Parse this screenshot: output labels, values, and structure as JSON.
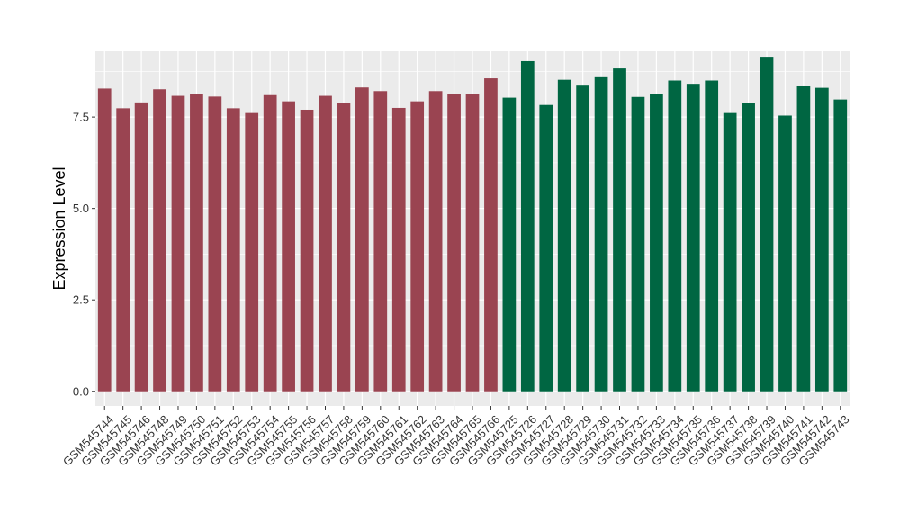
{
  "chart_data": {
    "type": "bar",
    "title": "",
    "xlabel": "",
    "ylabel": "Expression Level",
    "ylim": [
      -0.4,
      9.3
    ],
    "yticks": [
      0.0,
      2.5,
      5.0,
      7.5
    ],
    "ytick_labels": [
      "0.0",
      "2.5",
      "5.0",
      "7.5"
    ],
    "grid": true,
    "panel_background": "#ebebeb",
    "categories": [
      "GSM545744",
      "GSM545745",
      "GSM545746",
      "GSM545748",
      "GSM545749",
      "GSM545750",
      "GSM545751",
      "GSM545752",
      "GSM545753",
      "GSM545754",
      "GSM545755",
      "GSM545756",
      "GSM545757",
      "GSM545758",
      "GSM545759",
      "GSM545760",
      "GSM545761",
      "GSM545762",
      "GSM545763",
      "GSM545764",
      "GSM545765",
      "GSM545766",
      "GSM545725",
      "GSM545726",
      "GSM545727",
      "GSM545728",
      "GSM545729",
      "GSM545730",
      "GSM545731",
      "GSM545732",
      "GSM545733",
      "GSM545734",
      "GSM545735",
      "GSM545736",
      "GSM545737",
      "GSM545738",
      "GSM545739",
      "GSM545740",
      "GSM545741",
      "GSM545742",
      "GSM545743"
    ],
    "values": [
      8.28,
      7.74,
      7.9,
      8.26,
      8.08,
      8.13,
      8.06,
      7.74,
      7.61,
      8.1,
      7.93,
      7.7,
      8.08,
      7.88,
      8.31,
      8.21,
      7.75,
      7.93,
      8.21,
      8.13,
      8.13,
      8.56,
      8.03,
      9.03,
      7.83,
      8.52,
      8.36,
      8.59,
      8.83,
      8.05,
      8.13,
      8.5,
      8.41,
      8.5,
      7.61,
      7.88,
      9.15,
      7.54,
      8.34,
      8.3,
      7.98
    ],
    "groups": [
      {
        "color": "#9a4451",
        "count": 22
      },
      {
        "color": "#006642",
        "count": 19
      }
    ]
  }
}
